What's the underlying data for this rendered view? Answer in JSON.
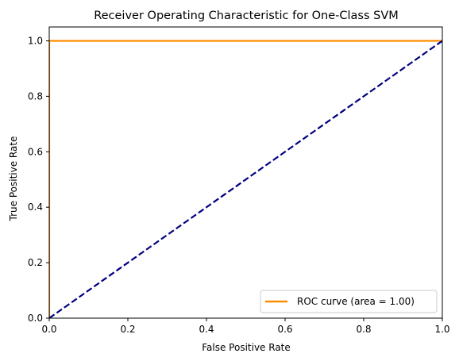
{
  "chart_data": {
    "type": "line",
    "title": "Receiver Operating Characteristic for One-Class SVM",
    "xlabel": "False Positive Rate",
    "ylabel": "True Positive Rate",
    "xlim": [
      0.0,
      1.0
    ],
    "ylim": [
      0.0,
      1.05
    ],
    "xticks": [
      "0.0",
      "0.2",
      "0.4",
      "0.6",
      "0.8",
      "1.0"
    ],
    "yticks": [
      "0.0",
      "0.2",
      "0.4",
      "0.6",
      "0.8",
      "1.0"
    ],
    "grid": false,
    "legend_position": "lower right",
    "series": [
      {
        "name": "ROC curve (area = 1.00)",
        "color": "#ff8c00",
        "style": "solid",
        "x": [
          0.0,
          0.0,
          1.0
        ],
        "y": [
          0.0,
          1.0,
          1.0
        ]
      },
      {
        "color": "#000080",
        "style": "dashed",
        "x": [
          0.0,
          1.0
        ],
        "y": [
          0.0,
          1.0
        ]
      }
    ]
  }
}
